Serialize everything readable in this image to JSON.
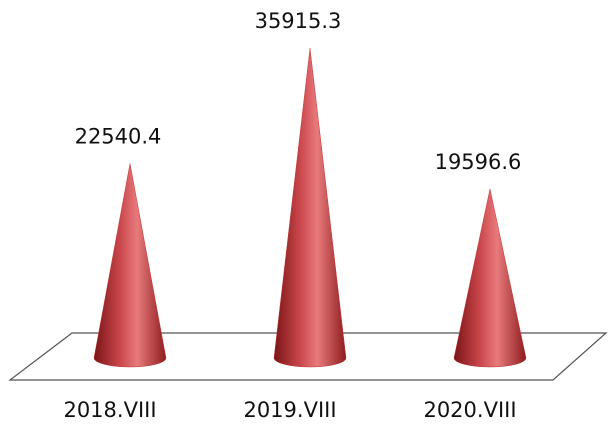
{
  "chart_data": {
    "type": "cone",
    "categories": [
      "2018.VIII",
      "2019.VIII",
      "2020.VIII"
    ],
    "values": [
      22540.4,
      35915.3,
      19596.6
    ],
    "color": "#c0393b"
  }
}
